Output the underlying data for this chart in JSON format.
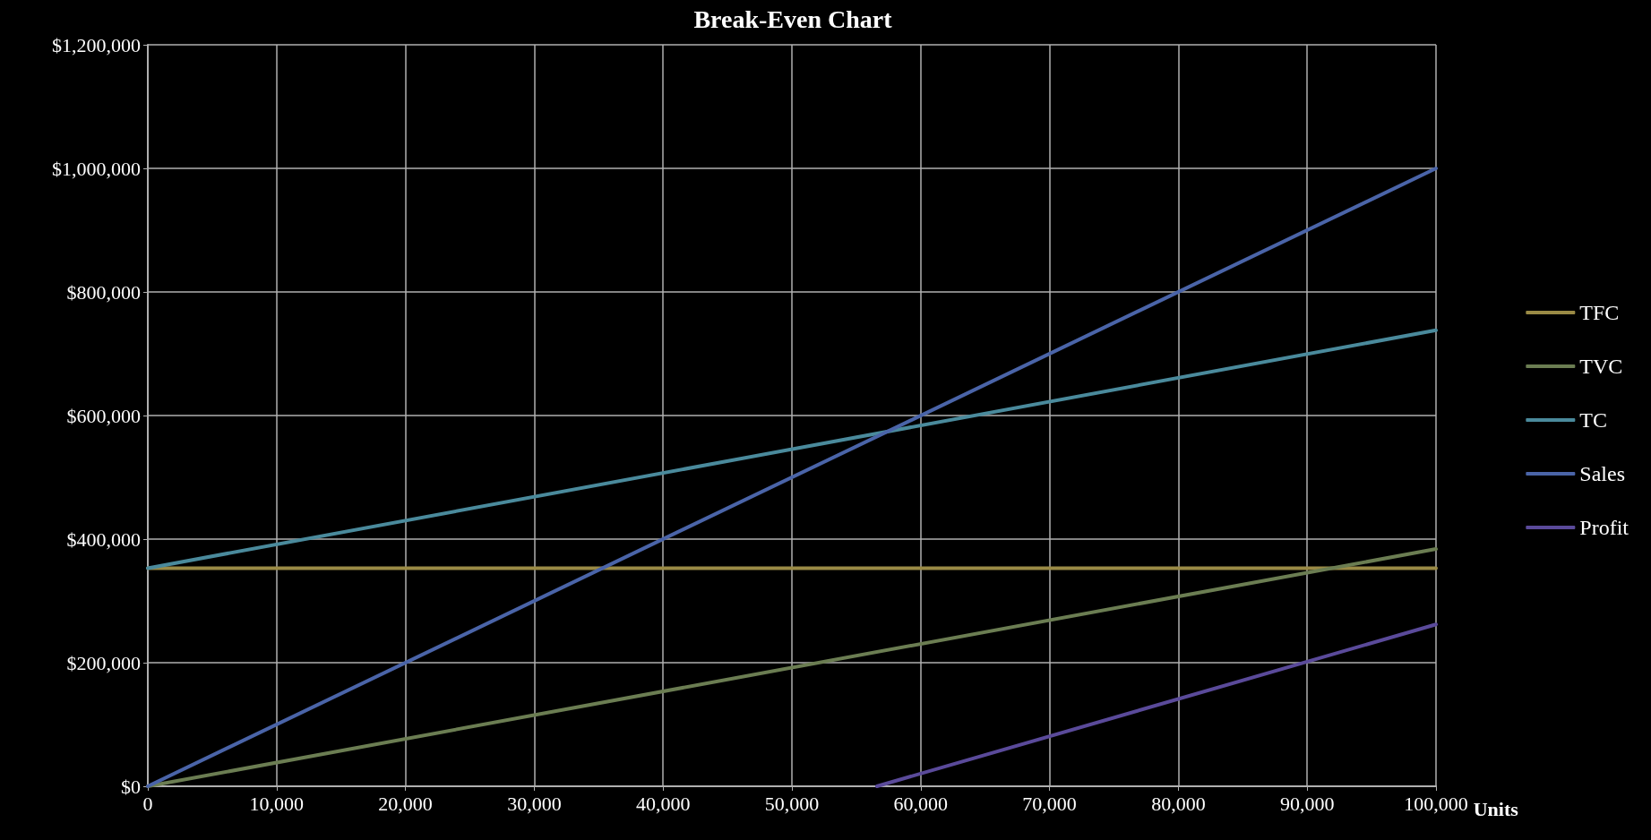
{
  "chart_data": {
    "type": "line",
    "title": "Break-Even Chart",
    "xlabel": "Units",
    "xlim": [
      0,
      100000
    ],
    "xticks": [
      0,
      {
        "value": 10000,
        "label": "10,000"
      },
      {
        "value": 20000,
        "label": "20,000"
      },
      {
        "value": 30000,
        "label": "30,000"
      },
      {
        "value": 40000,
        "label": "40,000"
      },
      {
        "value": 50000,
        "label": "50,000"
      },
      {
        "value": 60000,
        "label": "60,000"
      },
      {
        "value": 70000,
        "label": "70,000"
      },
      {
        "value": 80000,
        "label": "80,000"
      },
      {
        "value": 90000,
        "label": "90,000"
      },
      {
        "value": 100000,
        "label": "100,000"
      }
    ],
    "ylim": [
      0,
      1200000
    ],
    "yticks": [
      {
        "value": 0,
        "label": "$0"
      },
      {
        "value": 200000,
        "label": "$200,000"
      },
      {
        "value": 400000,
        "label": "$400,000"
      },
      {
        "value": 600000,
        "label": "$600,000"
      },
      {
        "value": 800000,
        "label": "$800,000"
      },
      {
        "value": 1000000,
        "label": "$1,000,000"
      },
      {
        "value": 1200000,
        "label": "$1,200,000"
      }
    ],
    "grid": true,
    "legend": "right",
    "marker": "none",
    "line_style": "solid",
    "series": [
      {
        "name": "TFC",
        "color": "#9a8a45",
        "x": [
          0,
          100000
        ],
        "values": [
          353000,
          353000
        ]
      },
      {
        "name": "TVC",
        "color": "#6b7d52",
        "x": [
          0,
          100000
        ],
        "values": [
          0,
          384000
        ]
      },
      {
        "name": "TC",
        "color": "#4a8a9c",
        "x": [
          0,
          100000
        ],
        "values": [
          353000,
          738000
        ]
      },
      {
        "name": "Sales",
        "color": "#4a64a8",
        "x": [
          0,
          100000
        ],
        "values": [
          0,
          1000000
        ]
      },
      {
        "name": "Profit",
        "color": "#5a4a9a",
        "x": [
          56600,
          100000
        ],
        "values": [
          0,
          262000
        ]
      }
    ]
  }
}
